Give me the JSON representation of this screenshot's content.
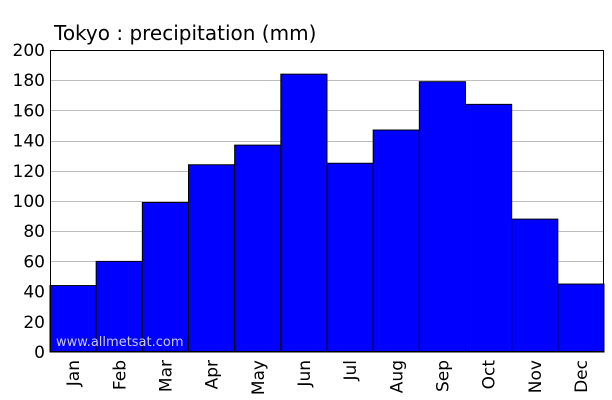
{
  "chart_data": {
    "type": "bar",
    "title": "Tokyo : precipitation (mm)",
    "xlabel": "",
    "ylabel": "",
    "categories": [
      "Jan",
      "Feb",
      "Mar",
      "Apr",
      "May",
      "Jun",
      "Jul",
      "Aug",
      "Sep",
      "Oct",
      "Nov",
      "Dec"
    ],
    "values": [
      44,
      60,
      99,
      124,
      137,
      184,
      125,
      147,
      179,
      164,
      88,
      45
    ],
    "ylim": [
      0,
      200
    ],
    "yticks": [
      0,
      20,
      40,
      60,
      80,
      100,
      120,
      140,
      160,
      180,
      200
    ],
    "grid": true,
    "bar_color": "#0000ff",
    "watermark": "www.allmetsat.com"
  }
}
